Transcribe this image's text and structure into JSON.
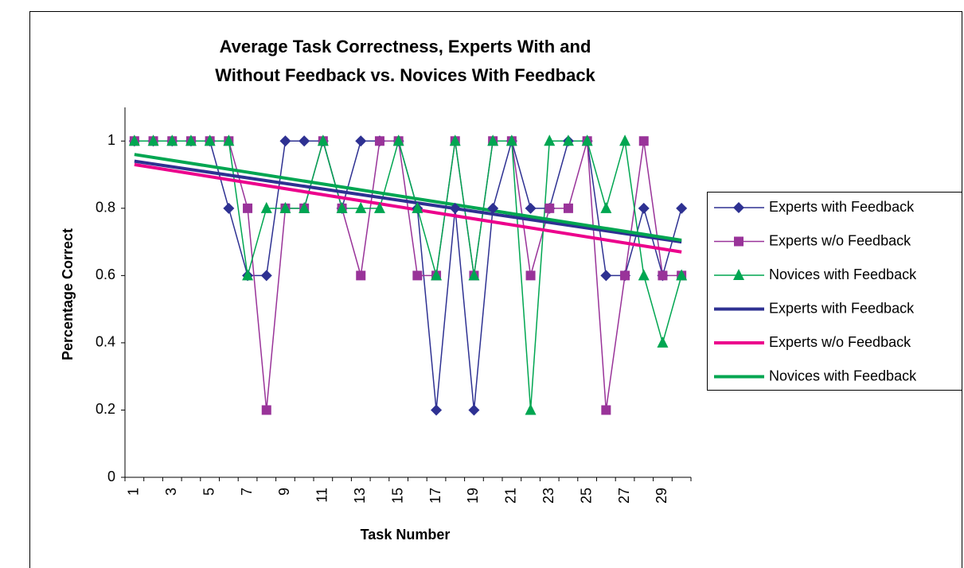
{
  "chart_data": {
    "type": "line",
    "title": [
      "Average Task Correctness, Experts With and",
      "Without Feedback vs. Novices With Feedback"
    ],
    "x_label": "Task Number",
    "y_label": "Percentage Correct",
    "categories": [
      "1",
      null,
      "3",
      null,
      "5",
      null,
      "7",
      null,
      "9",
      null,
      "11",
      null,
      "13",
      null,
      "15",
      null,
      "17",
      null,
      "19",
      null,
      "21",
      null,
      "23",
      null,
      "25",
      null,
      "27",
      null,
      "29",
      null
    ],
    "ylim": [
      0,
      1.1
    ],
    "yticks": [
      0,
      0.2,
      0.4,
      0.6,
      0.8,
      1
    ],
    "series": [
      {
        "name": "Experts with Feedback",
        "color": "#2e3192",
        "marker": "diamond",
        "values": [
          1,
          1,
          1,
          1,
          1,
          0.8,
          0.6,
          0.6,
          1,
          1,
          1,
          0.8,
          1,
          1,
          1,
          0.8,
          0.2,
          0.8,
          0.2,
          0.8,
          1,
          0.8,
          0.8,
          1,
          1,
          0.6,
          0.6,
          0.8,
          0.6,
          0.8
        ]
      },
      {
        "name": "Experts w/o Feedback",
        "color": "#993399",
        "marker": "square",
        "values": [
          1,
          1,
          1,
          1,
          1,
          1,
          0.8,
          0.2,
          0.8,
          0.8,
          1,
          0.8,
          0.6,
          1,
          1,
          0.6,
          0.6,
          1,
          0.6,
          1,
          1,
          0.6,
          0.8,
          0.8,
          1,
          0.2,
          0.6,
          1,
          0.6,
          0.6
        ]
      },
      {
        "name": "Novices with Feedback",
        "color": "#00a651",
        "marker": "triangle",
        "values": [
          1,
          1,
          1,
          1,
          1,
          1,
          0.6,
          0.8,
          0.8,
          0.8,
          1,
          0.8,
          0.8,
          0.8,
          1,
          0.8,
          0.6,
          1,
          0.6,
          1,
          1,
          0.2,
          1,
          1,
          1,
          0.8,
          1,
          0.6,
          0.4,
          0.6
        ]
      }
    ],
    "trendlines": [
      {
        "name": "Experts with Feedback",
        "color": "#2e3192",
        "start": 0.94,
        "end": 0.7
      },
      {
        "name": "Experts w/o Feedback",
        "color": "#ec008c",
        "start": 0.93,
        "end": 0.67
      },
      {
        "name": "Novices with Feedback",
        "color": "#00a651",
        "start": 0.96,
        "end": 0.705
      }
    ]
  }
}
